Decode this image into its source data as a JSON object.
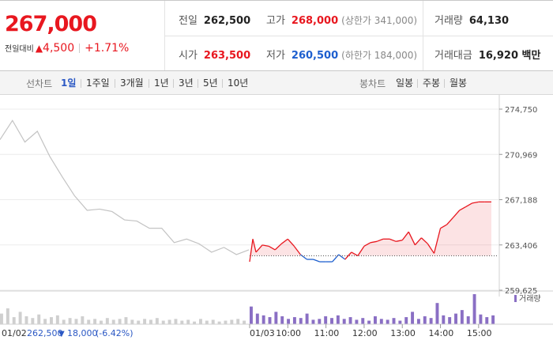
{
  "quote": {
    "price": "267,000",
    "change_label": "전일대비",
    "change_icon": "▲",
    "change_amount": "4,500",
    "change_percent": "+1.71%"
  },
  "stats": {
    "prev_close_label": "전일",
    "prev_close": "262,500",
    "high_label": "고가",
    "high": "268,000",
    "upper_limit": "(상한가 341,000)",
    "volume_label": "거래량",
    "volume": "64,130",
    "open_label": "시가",
    "open": "263,500",
    "low_label": "저가",
    "low": "260,500",
    "lower_limit": "(하한가 184,000)",
    "amount_label": "거래대금",
    "amount": "16,920 백만"
  },
  "tabs": {
    "line_label": "선차트",
    "periods": [
      "1일",
      "1주일",
      "3개월",
      "1년",
      "3년",
      "5년",
      "10년"
    ],
    "candle_label": "봉차트",
    "candles": [
      "일봉",
      "주봉",
      "월봉"
    ]
  },
  "colors": {
    "up": "#e8171f",
    "down": "#1d5fcf",
    "prev_day": "#c3c3c3",
    "active_tab": "#2b58c4"
  },
  "chart_data": {
    "type": "line",
    "y_ticks": [
      "274,750",
      "270,969",
      "267,188",
      "263,406",
      "259,625"
    ],
    "ylim": [
      259625,
      274750
    ],
    "x_ticks": [
      "01/03",
      "10:00",
      "11:00",
      "12:00",
      "13:00",
      "14:00",
      "15:00"
    ],
    "baseline": 262500,
    "volume_legend": "거래량",
    "prev_day": {
      "date": "01/02",
      "close": "262,500",
      "change_icon": "▼",
      "change": "18,000",
      "change_pct": "(-6.42%)",
      "x": [
        0,
        0.05,
        0.1,
        0.15,
        0.2,
        0.25,
        0.3,
        0.35,
        0.4,
        0.45,
        0.5,
        0.55,
        0.6,
        0.65,
        0.7,
        0.75,
        0.8,
        0.85,
        0.9,
        0.95,
        1
      ],
      "values": [
        272200,
        273800,
        272000,
        272900,
        270800,
        269100,
        267500,
        266300,
        266400,
        266200,
        265500,
        265400,
        264800,
        264800,
        263600,
        263900,
        263500,
        262800,
        263200,
        262600,
        263000
      ]
    },
    "today": {
      "x": [
        "09:00",
        "09:05",
        "09:10",
        "09:20",
        "09:30",
        "09:40",
        "09:50",
        "10:00",
        "10:10",
        "10:20",
        "10:30",
        "10:40",
        "10:50",
        "11:00",
        "11:10",
        "11:20",
        "11:30",
        "11:40",
        "11:50",
        "12:00",
        "12:10",
        "12:20",
        "12:30",
        "12:40",
        "12:50",
        "13:00",
        "13:10",
        "13:20",
        "13:30",
        "13:40",
        "13:50",
        "14:00",
        "14:10",
        "14:20",
        "14:30",
        "14:40",
        "14:50",
        "15:00",
        "15:10",
        "15:20"
      ],
      "values": [
        262000,
        263900,
        262800,
        263400,
        263300,
        263000,
        263500,
        263900,
        263300,
        262600,
        262200,
        262200,
        262000,
        262000,
        262000,
        262600,
        262200,
        262800,
        262500,
        263300,
        263600,
        263700,
        263900,
        263900,
        263700,
        263800,
        264500,
        263400,
        264000,
        263500,
        262700,
        264800,
        265100,
        265700,
        266300,
        266600,
        266900,
        267000,
        267000,
        267000
      ]
    },
    "volume_prev": [
      12,
      18,
      8,
      14,
      9,
      7,
      11,
      6,
      8,
      10,
      5,
      7,
      6,
      9,
      5,
      6,
      4,
      7,
      5,
      6,
      8,
      5,
      4,
      6,
      5,
      7,
      4,
      5,
      6,
      4,
      5,
      3,
      6,
      4,
      5,
      3,
      4,
      5,
      6,
      4
    ],
    "volume_today": [
      20,
      12,
      10,
      8,
      14,
      9,
      6,
      8,
      7,
      12,
      5,
      6,
      9,
      7,
      10,
      6,
      8,
      5,
      7,
      4,
      9,
      6,
      5,
      7,
      4,
      8,
      14,
      6,
      9,
      7,
      24,
      10,
      8,
      12,
      16,
      9,
      34,
      11,
      8,
      10
    ]
  }
}
